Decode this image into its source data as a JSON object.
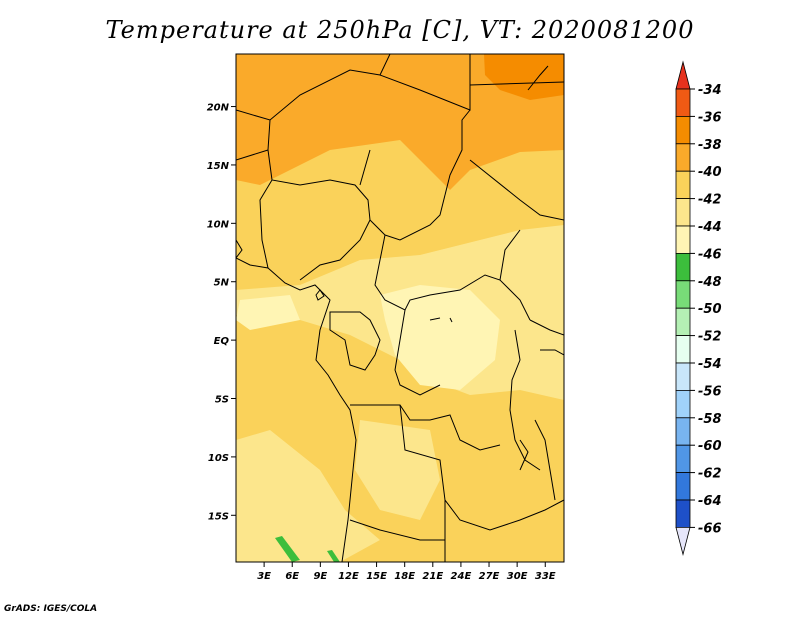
{
  "title": "Temperature at 250hPa [C], VT: 2020081200",
  "credit": "GrADS: IGES/COLA",
  "map": {
    "lat_ticks": [
      {
        "lat": 20,
        "label": "20N"
      },
      {
        "lat": 15,
        "label": "15N"
      },
      {
        "lat": 10,
        "label": "10N"
      },
      {
        "lat": 5,
        "label": "5N"
      },
      {
        "lat": 0,
        "label": "EQ"
      },
      {
        "lat": -5,
        "label": "5S"
      },
      {
        "lat": -10,
        "label": "10S"
      },
      {
        "lat": -15,
        "label": "15S"
      }
    ],
    "lon_ticks": [
      {
        "lon": 3,
        "label": "3E"
      },
      {
        "lon": 6,
        "label": "6E"
      },
      {
        "lon": 9,
        "label": "9E"
      },
      {
        "lon": 12,
        "label": "12E"
      },
      {
        "lon": 15,
        "label": "15E"
      },
      {
        "lon": 18,
        "label": "18E"
      },
      {
        "lon": 21,
        "label": "21E"
      },
      {
        "lon": 24,
        "label": "24E"
      },
      {
        "lon": 27,
        "label": "27E"
      },
      {
        "lon": 30,
        "label": "30E"
      },
      {
        "lon": 33,
        "label": "33E"
      }
    ]
  },
  "colorbar": {
    "levels": [
      {
        "label": "-34",
        "color": "#f05a14"
      },
      {
        "label": "-36",
        "color": "#f58c00"
      },
      {
        "label": "-38",
        "color": "#faaa2a"
      },
      {
        "label": "-40",
        "color": "#fad25a"
      },
      {
        "label": "-42",
        "color": "#fce68c"
      },
      {
        "label": "-44",
        "color": "#fff5b4"
      },
      {
        "label": "-46",
        "color": "#3cbe3c"
      },
      {
        "label": "-48",
        "color": "#78dc78"
      },
      {
        "label": "-50",
        "color": "#b4f0b4"
      },
      {
        "label": "-52",
        "color": "#e6fff0"
      },
      {
        "label": "-54",
        "color": "#c8e6fa"
      },
      {
        "label": "-56",
        "color": "#a0d2fa"
      },
      {
        "label": "-58",
        "color": "#78b4f0"
      },
      {
        "label": "-60",
        "color": "#5096e6"
      },
      {
        "label": "-62",
        "color": "#3278dc"
      },
      {
        "label": "-64",
        "color": "#1e50c8"
      },
      {
        "label": "-66",
        "color": "#0a1e78"
      }
    ],
    "top_color": "#e6321e",
    "bottom_color": "#e6e6fa"
  }
}
